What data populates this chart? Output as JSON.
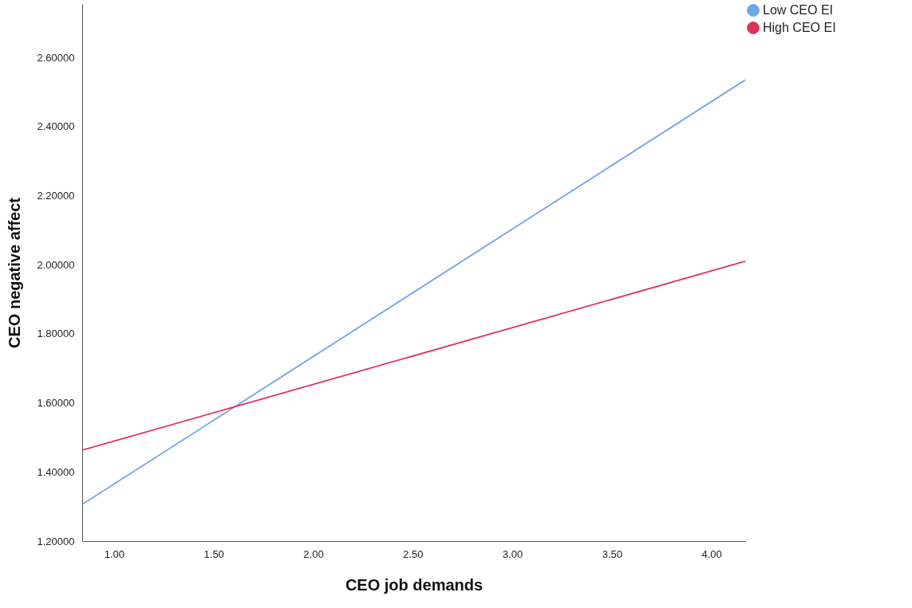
{
  "chart_data": {
    "type": "line",
    "xlabel": "CEO job demands",
    "ylabel": "CEO negative affect",
    "x": [
      0.84,
      4.17
    ],
    "series": [
      {
        "name": "Low CEO EI",
        "color": "#6fa6e8",
        "values": [
          1.306,
          2.535
        ]
      },
      {
        "name": "High CEO EI",
        "color": "#e0315a",
        "values": [
          1.463,
          2.01
        ]
      }
    ],
    "xlim": [
      0.84,
      4.17
    ],
    "xticks": [
      {
        "value": 1,
        "label": "1.00"
      },
      {
        "value": 1.5,
        "label": "1.50"
      },
      {
        "value": 2,
        "label": "2.00"
      },
      {
        "value": 2.5,
        "label": "2.50"
      },
      {
        "value": 3,
        "label": "3.00"
      },
      {
        "value": 3.5,
        "label": "3.50"
      },
      {
        "value": 4,
        "label": "4.00"
      }
    ],
    "ylim": [
      1.2,
      2.755
    ],
    "yticks": [
      {
        "value": 1.2,
        "label": "1.20000"
      },
      {
        "value": 1.4,
        "label": "1.40000"
      },
      {
        "value": 1.6,
        "label": "1.60000"
      },
      {
        "value": 1.8,
        "label": "1.80000"
      },
      {
        "value": 2,
        "label": "2.00000"
      },
      {
        "value": 2.2,
        "label": "2.20000"
      },
      {
        "value": 2.4,
        "label": "2.40000"
      },
      {
        "value": 2.6,
        "label": "2.60000"
      }
    ],
    "grid": false,
    "legend": "top right",
    "marker": "none",
    "line_style": "solid"
  }
}
